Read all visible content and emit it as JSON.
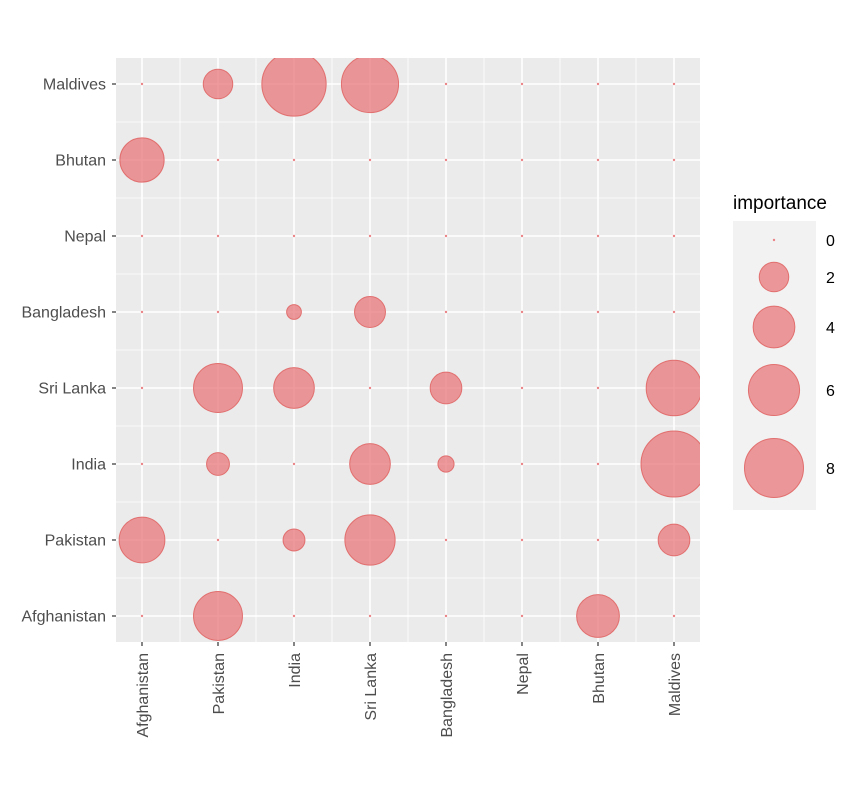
{
  "chart_data": {
    "type": "scatter",
    "title": "",
    "xlabel": "",
    "ylabel": "",
    "x_categories": [
      "Afghanistan",
      "Pakistan",
      "India",
      "Sri Lanka",
      "Bangladesh",
      "Nepal",
      "Bhutan",
      "Maldives"
    ],
    "y_categories": [
      "Afghanistan",
      "Pakistan",
      "India",
      "Sri Lanka",
      "Bangladesh",
      "Nepal",
      "Bhutan",
      "Maldives"
    ],
    "size_variable": "importance",
    "legend": {
      "title": "importance",
      "position": "right",
      "breaks": [
        0,
        2,
        4,
        6,
        8
      ],
      "labels": [
        "0",
        "2",
        "4",
        "6",
        "8"
      ]
    },
    "grid": true,
    "colors": {
      "point_fill": "#E8777A",
      "point_stroke": "#E06666",
      "panel_background": "#EBEBEB",
      "gridline": "#FFFFFF",
      "legend_background": "#F2F2F2"
    },
    "points": [
      {
        "x": "Afghanistan",
        "y": "Maldives",
        "importance": 0
      },
      {
        "x": "Pakistan",
        "y": "Maldives",
        "importance": 2
      },
      {
        "x": "India",
        "y": "Maldives",
        "importance": 9.5
      },
      {
        "x": "Sri Lanka",
        "y": "Maldives",
        "importance": 7.5
      },
      {
        "x": "Bangladesh",
        "y": "Maldives",
        "importance": 0
      },
      {
        "x": "Nepal",
        "y": "Maldives",
        "importance": 0
      },
      {
        "x": "Bhutan",
        "y": "Maldives",
        "importance": 0
      },
      {
        "x": "Maldives",
        "y": "Maldives",
        "importance": 0
      },
      {
        "x": "Afghanistan",
        "y": "Bhutan",
        "importance": 4.5
      },
      {
        "x": "Pakistan",
        "y": "Bhutan",
        "importance": 0
      },
      {
        "x": "India",
        "y": "Bhutan",
        "importance": 0
      },
      {
        "x": "Sri Lanka",
        "y": "Bhutan",
        "importance": 0
      },
      {
        "x": "Bangladesh",
        "y": "Bhutan",
        "importance": 0
      },
      {
        "x": "Nepal",
        "y": "Bhutan",
        "importance": 0
      },
      {
        "x": "Bhutan",
        "y": "Bhutan",
        "importance": 0
      },
      {
        "x": "Maldives",
        "y": "Bhutan",
        "importance": 0
      },
      {
        "x": "Afghanistan",
        "y": "Nepal",
        "importance": 0
      },
      {
        "x": "Pakistan",
        "y": "Nepal",
        "importance": 0
      },
      {
        "x": "India",
        "y": "Nepal",
        "importance": 0
      },
      {
        "x": "Sri Lanka",
        "y": "Nepal",
        "importance": 0
      },
      {
        "x": "Bangladesh",
        "y": "Nepal",
        "importance": 0
      },
      {
        "x": "Nepal",
        "y": "Nepal",
        "importance": 0
      },
      {
        "x": "Bhutan",
        "y": "Nepal",
        "importance": 0
      },
      {
        "x": "Maldives",
        "y": "Nepal",
        "importance": 0
      },
      {
        "x": "Afghanistan",
        "y": "Bangladesh",
        "importance": 0
      },
      {
        "x": "Pakistan",
        "y": "Bangladesh",
        "importance": 0
      },
      {
        "x": "India",
        "y": "Bangladesh",
        "importance": 0.5
      },
      {
        "x": "Sri Lanka",
        "y": "Bangladesh",
        "importance": 2.2
      },
      {
        "x": "Bangladesh",
        "y": "Bangladesh",
        "importance": 0
      },
      {
        "x": "Nepal",
        "y": "Bangladesh",
        "importance": 0
      },
      {
        "x": "Bhutan",
        "y": "Bangladesh",
        "importance": 0
      },
      {
        "x": "Maldives",
        "y": "Bangladesh",
        "importance": 0
      },
      {
        "x": "Afghanistan",
        "y": "Sri Lanka",
        "importance": 0
      },
      {
        "x": "Pakistan",
        "y": "Sri Lanka",
        "importance": 5.5
      },
      {
        "x": "India",
        "y": "Sri Lanka",
        "importance": 3.8
      },
      {
        "x": "Sri Lanka",
        "y": "Sri Lanka",
        "importance": 0
      },
      {
        "x": "Bangladesh",
        "y": "Sri Lanka",
        "importance": 2.3
      },
      {
        "x": "Nepal",
        "y": "Sri Lanka",
        "importance": 0
      },
      {
        "x": "Bhutan",
        "y": "Sri Lanka",
        "importance": 0
      },
      {
        "x": "Maldives",
        "y": "Sri Lanka",
        "importance": 7.1
      },
      {
        "x": "Afghanistan",
        "y": "India",
        "importance": 0
      },
      {
        "x": "Pakistan",
        "y": "India",
        "importance": 1.2
      },
      {
        "x": "India",
        "y": "India",
        "importance": 0
      },
      {
        "x": "Sri Lanka",
        "y": "India",
        "importance": 3.8
      },
      {
        "x": "Bangladesh",
        "y": "India",
        "importance": 0.6
      },
      {
        "x": "Nepal",
        "y": "India",
        "importance": 0
      },
      {
        "x": "Bhutan",
        "y": "India",
        "importance": 0
      },
      {
        "x": "Maldives",
        "y": "India",
        "importance": 10
      },
      {
        "x": "Afghanistan",
        "y": "Pakistan",
        "importance": 4.8
      },
      {
        "x": "Pakistan",
        "y": "Pakistan",
        "importance": 0
      },
      {
        "x": "India",
        "y": "Pakistan",
        "importance": 1.1
      },
      {
        "x": "Sri Lanka",
        "y": "Pakistan",
        "importance": 5.8
      },
      {
        "x": "Bangladesh",
        "y": "Pakistan",
        "importance": 0
      },
      {
        "x": "Nepal",
        "y": "Pakistan",
        "importance": 0
      },
      {
        "x": "Bhutan",
        "y": "Pakistan",
        "importance": 0
      },
      {
        "x": "Maldives",
        "y": "Pakistan",
        "importance": 2.3
      },
      {
        "x": "Afghanistan",
        "y": "Afghanistan",
        "importance": 0
      },
      {
        "x": "Pakistan",
        "y": "Afghanistan",
        "importance": 5.5
      },
      {
        "x": "India",
        "y": "Afghanistan",
        "importance": 0
      },
      {
        "x": "Sri Lanka",
        "y": "Afghanistan",
        "importance": 0
      },
      {
        "x": "Bangladesh",
        "y": "Afghanistan",
        "importance": 0
      },
      {
        "x": "Nepal",
        "y": "Afghanistan",
        "importance": 0
      },
      {
        "x": "Bhutan",
        "y": "Afghanistan",
        "importance": 4.2
      },
      {
        "x": "Maldives",
        "y": "Afghanistan",
        "importance": 0
      }
    ]
  }
}
